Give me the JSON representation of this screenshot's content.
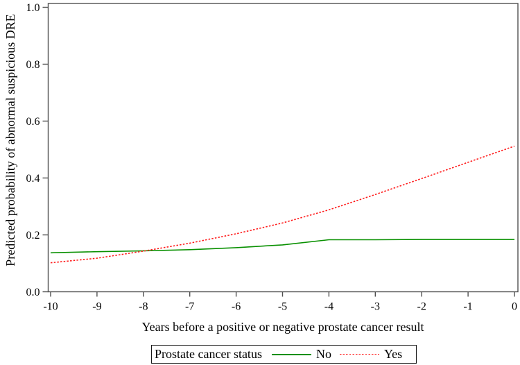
{
  "chart_data": {
    "type": "line",
    "title": "",
    "xlabel": "Years before a positive or negative prostate cancer result",
    "ylabel": "Predicted probability of abnormal suspicious DRE",
    "xlim": [
      -10,
      0
    ],
    "ylim": [
      0.0,
      1.0
    ],
    "grid": false,
    "x": [
      -10,
      -9,
      -8,
      -7,
      -6,
      -5,
      -4,
      -3,
      -2,
      -1,
      0
    ],
    "xtick_labels": [
      "-10",
      "-9",
      "-8",
      "-7",
      "-6",
      "-5",
      "-4",
      "-3",
      "-2",
      "-1",
      "0"
    ],
    "yticks": [
      0.0,
      0.2,
      0.4,
      0.6,
      0.8,
      1.0
    ],
    "ytick_labels": [
      "0.0",
      "0.2",
      "0.4",
      "0.6",
      "0.8",
      "1.0"
    ],
    "series": [
      {
        "name": "No",
        "color": "#089000",
        "line_style": "solid",
        "values": [
          0.137,
          0.141,
          0.144,
          0.148,
          0.155,
          0.165,
          0.183,
          0.183,
          0.184,
          0.184,
          0.184
        ]
      },
      {
        "name": "Yes",
        "color": "#ff1a1a",
        "line_style": "dotted",
        "values": [
          0.102,
          0.118,
          0.143,
          0.171,
          0.204,
          0.242,
          0.288,
          0.342,
          0.398,
          0.455,
          0.512
        ]
      }
    ],
    "legend": {
      "title": "Prostate cancer status",
      "position": "bottom",
      "labels": [
        "No",
        "Yes"
      ]
    },
    "axis_color": "#4f4f4f",
    "text_color": "#000000"
  }
}
